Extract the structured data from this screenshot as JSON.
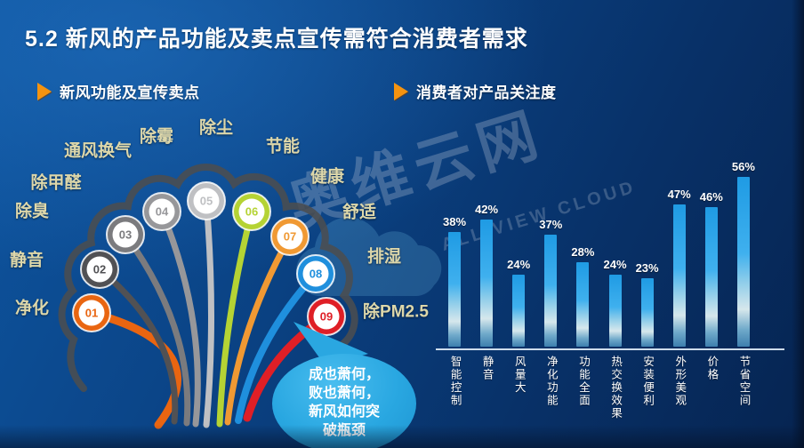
{
  "title": "5.2 新风的产品功能及卖点宣传需符合消费者需求",
  "accent_color": "#f5930f",
  "background_color": "#0b4588",
  "sections": {
    "left": {
      "header": "新风功能及宣传卖点"
    },
    "right": {
      "header": "消费者对产品关注度"
    }
  },
  "watermark": {
    "cn": "奥维云网",
    "en": "ALL VIEW CLOUD"
  },
  "fan": {
    "balls": [
      {
        "num": "01",
        "color": "#e96511"
      },
      {
        "num": "02",
        "color": "#515154"
      },
      {
        "num": "03",
        "color": "#7b7b7e"
      },
      {
        "num": "04",
        "color": "#97979a"
      },
      {
        "num": "05",
        "color": "#bfc0c3"
      },
      {
        "num": "06",
        "color": "#b5d334"
      },
      {
        "num": "07",
        "color": "#f09933"
      },
      {
        "num": "08",
        "color": "#1f8fdd"
      },
      {
        "num": "09",
        "color": "#df1f26"
      }
    ],
    "labels": [
      "净化",
      "静音",
      "除臭",
      "除甲醛",
      "通风换气",
      "除霉",
      "除尘",
      "节能",
      "健康",
      "舒适",
      "排湿",
      "除PM2.5"
    ],
    "label_color": "#ddd7aa",
    "outline_color": "#4b4d50"
  },
  "bubble": {
    "color": "#29a7e1",
    "lines": [
      "成也萧何，",
      "败也萧何，",
      "新风如何突",
      "破瓶颈"
    ]
  },
  "chart_data": {
    "type": "bar",
    "title": "消费者对产品关注度",
    "categories": [
      "智能控制",
      "静音",
      "风量大",
      "净化功能",
      "功能全面",
      "热交换效果",
      "安装便利",
      "外形美观",
      "价格",
      "节省空间"
    ],
    "values": [
      38,
      42,
      24,
      37,
      28,
      24,
      23,
      47,
      46,
      56
    ],
    "value_labels": [
      "38%",
      "42%",
      "24%",
      "37%",
      "28%",
      "24%",
      "23%",
      "47%",
      "46%",
      "56%"
    ],
    "unit": "%",
    "xlabel": "",
    "ylabel": "",
    "ylim": [
      0,
      60
    ],
    "grid": false,
    "legend": false,
    "bar_color": "#2aa4e8"
  }
}
